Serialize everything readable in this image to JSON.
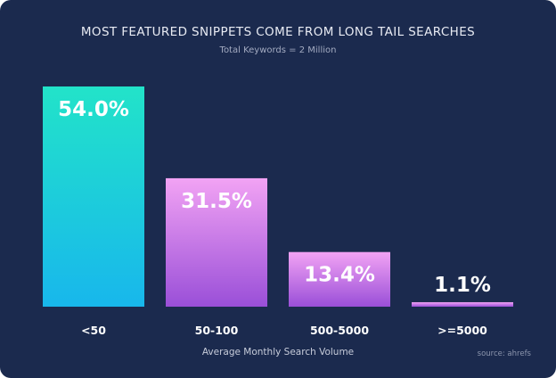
{
  "chart_data": {
    "type": "bar",
    "title": "MOST FEATURED SNIPPETS COME FROM LONG TAIL SEARCHES",
    "subtitle": "Total Keywords = 2 Million",
    "xlabel": "Average Monthly Search Volume",
    "ylabel": "",
    "source": "source: ahrefs",
    "categories": [
      "<50",
      "50-100",
      "500-5000",
      ">=5000"
    ],
    "values": [
      54.0,
      31.5,
      13.4,
      1.1
    ],
    "value_labels": [
      "54.0%",
      "31.5%",
      "13.4%",
      "1.1%"
    ],
    "unit": "%",
    "ylim": [
      0,
      54.0
    ],
    "grid": false,
    "legend": "none",
    "colors": {
      "background": "#1b2a4e",
      "bar1_top": "#22e3c9",
      "bar1_bottom": "#18b7ec",
      "bar_top": "#f2a3f4",
      "bar_bottom": "#9a4fd8"
    }
  }
}
